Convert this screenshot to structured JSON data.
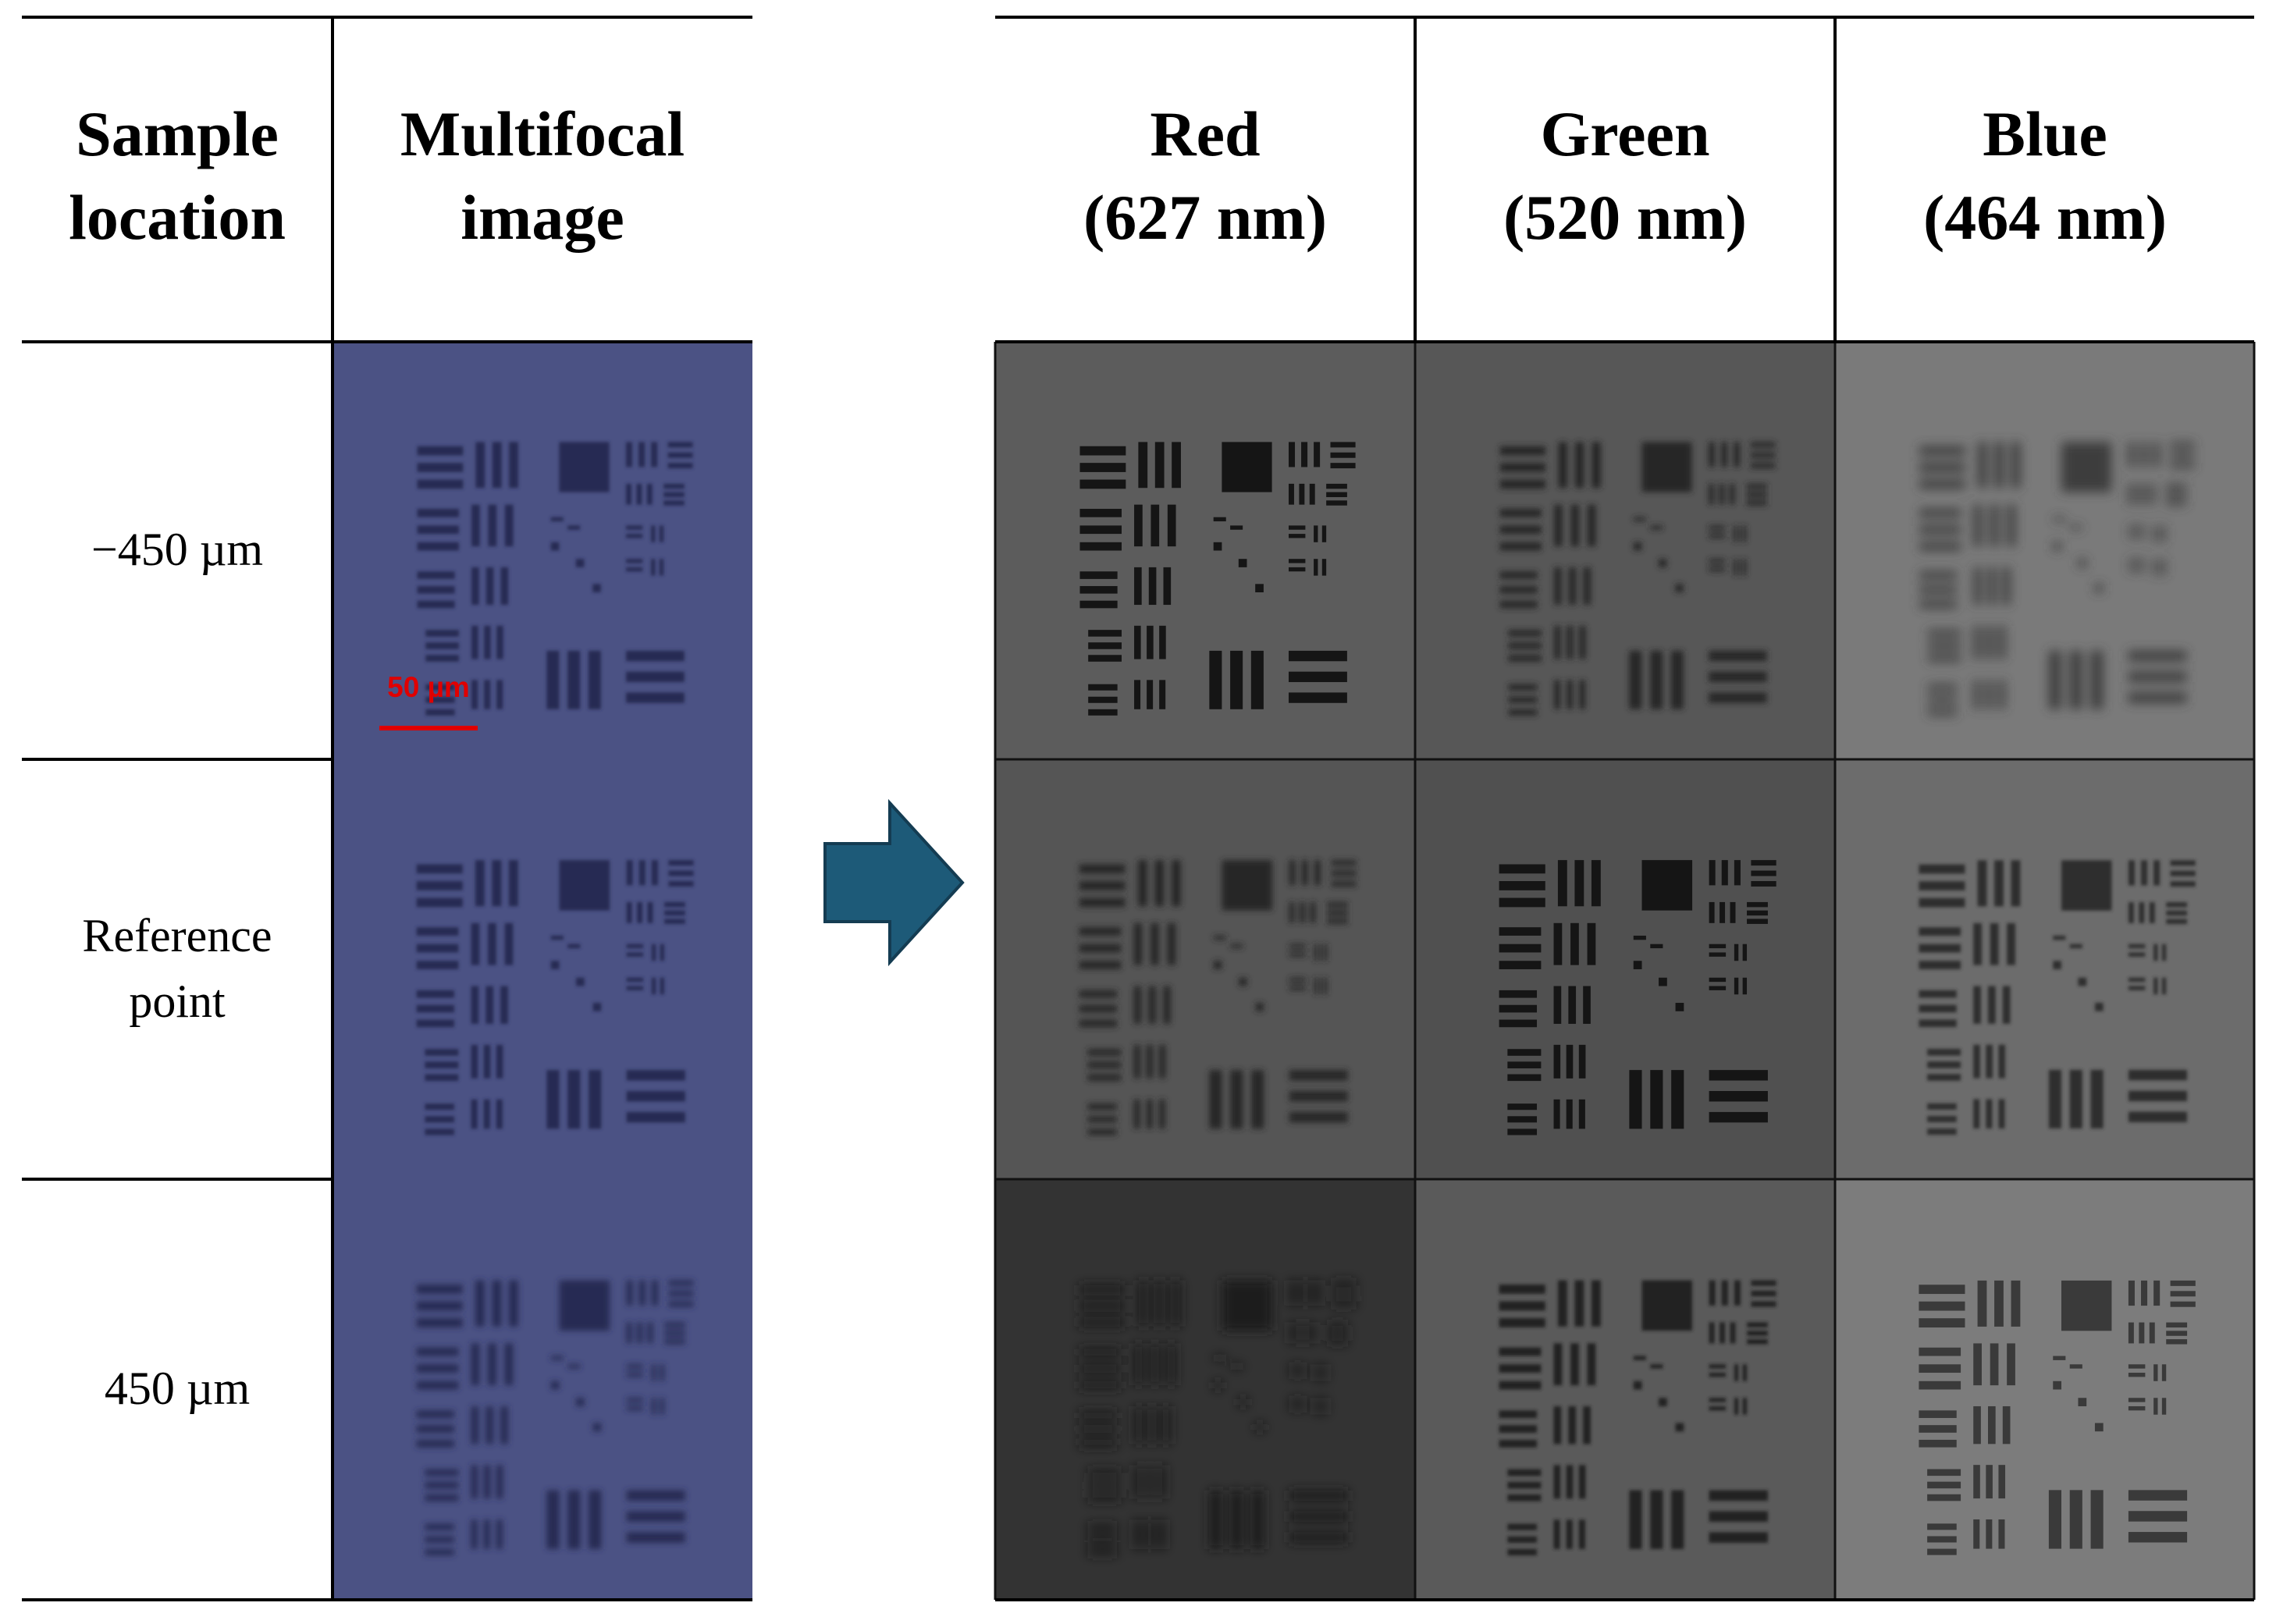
{
  "left_table": {
    "header": [
      [
        "Sample",
        "location"
      ],
      [
        "Multifocal",
        "image"
      ]
    ],
    "rows": [
      [
        "−450 µm"
      ],
      [
        "Reference",
        "point"
      ],
      [
        "450 µm"
      ]
    ],
    "scale_bar": "50 µm"
  },
  "right_table": {
    "header": [
      [
        "Red",
        "(627 nm)"
      ],
      [
        "Green",
        "(520 nm)"
      ],
      [
        "Blue",
        "(464 nm)"
      ]
    ]
  }
}
